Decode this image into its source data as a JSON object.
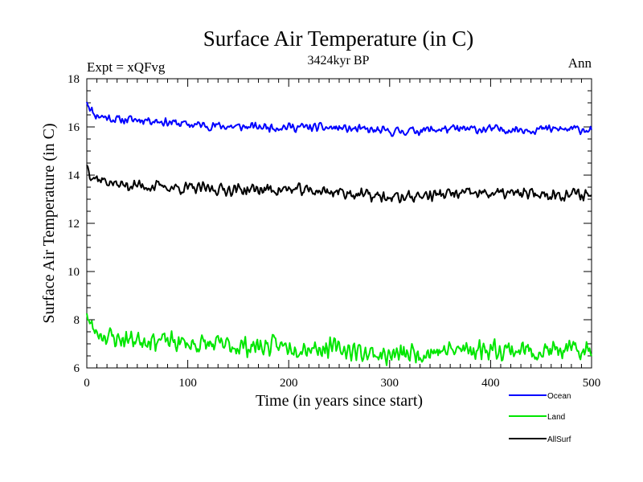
{
  "chart_data": {
    "type": "line",
    "title": "Surface Air Temperature (in C)",
    "subtitle": "3424kyr BP",
    "experiment_label": "Expt = xQFvg",
    "season_label": "Ann",
    "xlabel": "Time (in years since start)",
    "ylabel": "Surface Air Temperature (in C)",
    "xlim": [
      0,
      500
    ],
    "ylim": [
      6,
      18
    ],
    "x_ticks": [
      0,
      100,
      200,
      300,
      400,
      500
    ],
    "y_ticks": [
      6,
      8,
      10,
      12,
      14,
      16,
      18
    ],
    "grid": false,
    "legend_position": "bottom-right outside",
    "series": [
      {
        "name": "Ocean",
        "color": "#0000ff",
        "keyframes": [
          [
            0,
            17.1
          ],
          [
            3,
            16.8
          ],
          [
            8,
            16.5
          ],
          [
            30,
            16.3
          ],
          [
            60,
            16.3
          ],
          [
            100,
            16.1
          ],
          [
            150,
            16.0
          ],
          [
            200,
            16.0
          ],
          [
            250,
            15.95
          ],
          [
            300,
            15.8
          ],
          [
            350,
            15.9
          ],
          [
            400,
            15.9
          ],
          [
            450,
            15.9
          ],
          [
            500,
            15.9
          ]
        ],
        "noise_amplitude": 0.22,
        "seed": 11
      },
      {
        "name": "Land",
        "color": "#00e600",
        "keyframes": [
          [
            0,
            8.4
          ],
          [
            3,
            7.8
          ],
          [
            8,
            7.5
          ],
          [
            30,
            7.2
          ],
          [
            60,
            7.2
          ],
          [
            100,
            7.0
          ],
          [
            150,
            6.9
          ],
          [
            200,
            6.9
          ],
          [
            250,
            6.8
          ],
          [
            300,
            6.5
          ],
          [
            350,
            6.7
          ],
          [
            400,
            6.8
          ],
          [
            450,
            6.7
          ],
          [
            500,
            6.7
          ]
        ],
        "noise_amplitude": 0.5,
        "seed": 23
      },
      {
        "name": "AllSurf",
        "color": "#000000",
        "keyframes": [
          [
            0,
            14.5
          ],
          [
            3,
            14.1
          ],
          [
            8,
            13.9
          ],
          [
            30,
            13.6
          ],
          [
            60,
            13.55
          ],
          [
            100,
            13.45
          ],
          [
            150,
            13.4
          ],
          [
            200,
            13.4
          ],
          [
            250,
            13.3
          ],
          [
            300,
            13.05
          ],
          [
            350,
            13.2
          ],
          [
            400,
            13.25
          ],
          [
            450,
            13.2
          ],
          [
            500,
            13.2
          ]
        ],
        "noise_amplitude": 0.3,
        "seed": 37
      }
    ]
  }
}
